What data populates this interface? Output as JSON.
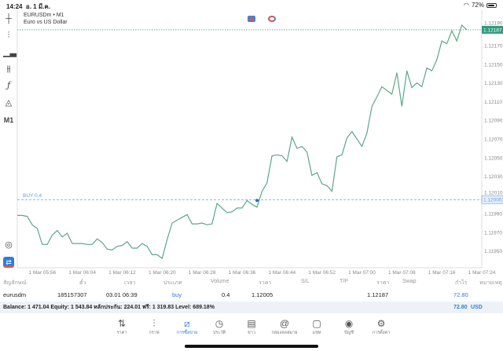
{
  "status_bar": {
    "time": "14:24",
    "date": "อ. 1 มี.ค.",
    "battery": "72%",
    "battery_level": 0.72
  },
  "chart": {
    "symbol": "EURUSDm • M1",
    "description": "Euro vs US Dollar",
    "timeframe": "M1",
    "buy_label": "BUY 0.4",
    "current_price_label": "1.12187",
    "entry_price_label": "1.12005",
    "line_color": "#5aa889",
    "entry_color": "#5b9ee6"
  },
  "chart_data": {
    "type": "line",
    "x_start": "05:51",
    "x_step_minutes": 1,
    "values": [
      1.11988,
      1.11988,
      1.11987,
      1.11978,
      1.11974,
      1.11957,
      1.11957,
      1.11967,
      1.11972,
      1.11965,
      1.11969,
      1.11958,
      1.11958,
      1.11958,
      1.11957,
      1.11957,
      1.11963,
      1.11959,
      1.11952,
      1.11951,
      1.11955,
      1.11956,
      1.1196,
      1.11953,
      1.11953,
      1.11958,
      1.11955,
      1.11946,
      1.11946,
      1.11942,
      1.11962,
      1.1198,
      1.11983,
      1.11986,
      1.11989,
      1.11979,
      1.11979,
      1.1198,
      1.11978,
      1.11979,
      1.12001,
      1.11996,
      1.11991,
      1.11992,
      1.11996,
      1.11996,
      1.12004,
      1.12,
      1.11997,
      1.12014,
      1.12023,
      1.12052,
      1.12053,
      1.12052,
      1.12046,
      1.12072,
      1.1206,
      1.12062,
      1.12056,
      1.12031,
      1.12034,
      1.12022,
      1.1202,
      1.12014,
      1.12051,
      1.12053,
      1.12071,
      1.12078,
      1.1207,
      1.12062,
      1.12076,
      1.12105,
      1.12115,
      1.12126,
      1.12122,
      1.12118,
      1.12141,
      1.12105,
      1.12143,
      1.12125,
      1.1213,
      1.12126,
      1.12146,
      1.12143,
      1.12155,
      1.12175,
      1.12172,
      1.12186,
      1.12175,
      1.12192,
      1.12187
    ],
    "ylim": [
      1.11932,
      1.12208
    ],
    "y_ticks": [
      "1.12190",
      "1.12170",
      "1.12150",
      "1.12130",
      "1.12110",
      "1.12090",
      "1.12070",
      "1.12050",
      "1.12030",
      "1.12010",
      "1.11990",
      "1.11970",
      "1.11950"
    ],
    "x_ticks": [
      "1 Mar 05:56",
      "1 Mar 06:04",
      "1 Mar 06:12",
      "1 Mar 06:20",
      "1 Mar 06:28",
      "1 Mar 06:36",
      "1 Mar 06:44",
      "1 Mar 06:52",
      "1 Mar 07:00",
      "1 Mar 07:08",
      "1 Mar 07:16",
      "1 Mar 07:24"
    ],
    "entry_price": 1.12005,
    "entry_time": "06:39",
    "current_price": 1.12187
  },
  "table": {
    "headers": [
      "สัญลักษณ์",
      "ตั๋ว",
      "เวลา",
      "ประเภท",
      "Volume",
      "ราคา",
      "S/L",
      "T/P",
      "ราคา",
      "Swap",
      "กำไร",
      "หมายเหตุ"
    ],
    "row": {
      "symbol": "eurusdm",
      "ticket": "185157307",
      "time": "03.01 06:39",
      "type": "buy",
      "volume": "0.4",
      "open_price": "1.12005",
      "sl": "",
      "tp": "",
      "price": "1.12187",
      "swap": "",
      "profit": "72.80",
      "comment": ""
    }
  },
  "balance": {
    "text": "Balance: 1 471.04 Equity: 1 543.84 หลักประกัน: 224.01 ฟรี: 1 319.83 Level: 689.18%",
    "total": "72.80",
    "currency": "USD"
  },
  "tabs": [
    {
      "label": "ราคา",
      "icon": "sort-arrows-icon"
    },
    {
      "label": "กราฟ",
      "icon": "candles-icon"
    },
    {
      "label": "การซื้อขาย",
      "icon": "trade-chart-icon",
      "active": true
    },
    {
      "label": "ประวัติ",
      "icon": "history-icon"
    },
    {
      "label": "ข่าว",
      "icon": "news-icon"
    },
    {
      "label": "กล่องจดหมาย",
      "icon": "mail-at-icon"
    },
    {
      "label": "แชท",
      "icon": "chat-icon"
    },
    {
      "label": "บัญชี",
      "icon": "account-icon"
    },
    {
      "label": "การตั้งค่า",
      "icon": "settings-icon"
    }
  ]
}
